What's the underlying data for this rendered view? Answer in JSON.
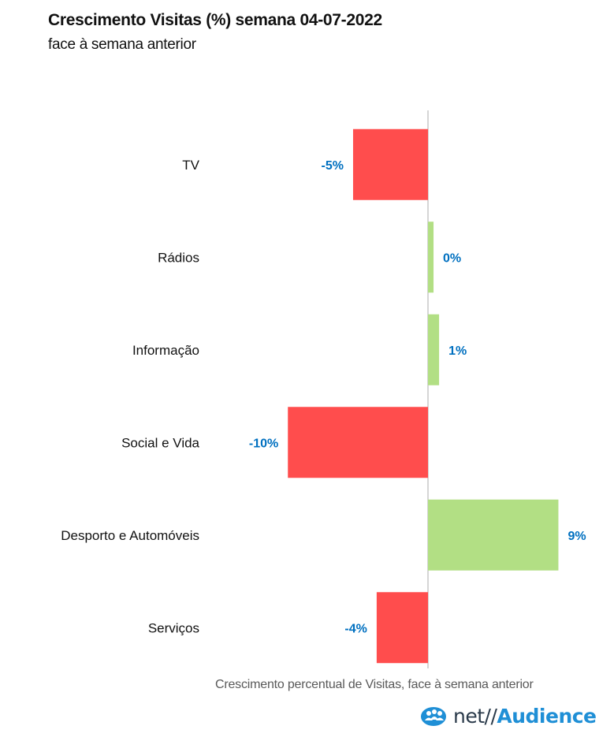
{
  "header": {
    "title": "Crescimento Visitas (%) semana 04-07-2022",
    "subtitle": "face à semana anterior"
  },
  "footer": {
    "caption": "Crescimento percentual de Visitas, face à semana anterior",
    "logo_net": "net//",
    "logo_audience": "Audience"
  },
  "colors": {
    "negative": "#ff4d4d",
    "positive": "#b2df84",
    "value_label": "#0070c0",
    "axis": "#c8c8c8",
    "logo_accent": "#1f8fd6"
  },
  "chart_data": {
    "type": "bar",
    "orientation": "horizontal",
    "title": "Crescimento Visitas (%) semana 04-07-2022",
    "subtitle": "face à semana anterior",
    "xlabel": "Crescimento percentual de Visitas, face à semana anterior",
    "categories": [
      "TV",
      "Rádios",
      "Informação",
      "Social e Vida",
      "Desporto e Automóveis",
      "Serviços"
    ],
    "values": [
      -5.4,
      0.4,
      0.8,
      -10.1,
      9.4,
      -3.7
    ],
    "labels": [
      "-5%",
      "0%",
      "1%",
      "-10%",
      "9%",
      "-4%"
    ],
    "xlim": [
      -14,
      12
    ],
    "grid": false,
    "legend": "none"
  }
}
